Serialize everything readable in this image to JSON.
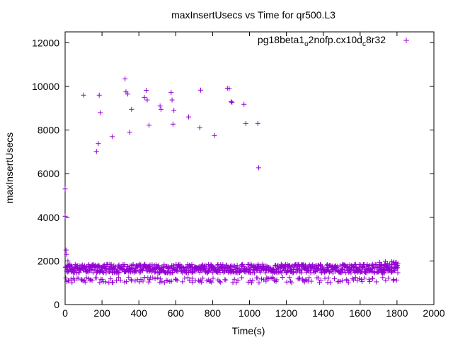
{
  "chart_data": {
    "type": "scatter",
    "title": "maxInsertUsecs vs Time for qr500.L3",
    "xlabel": "Time(s)",
    "ylabel": "maxInsertUsecs",
    "xlim": [
      0,
      2000
    ],
    "ylim": [
      0,
      12500
    ],
    "x_ticks": [
      "0",
      "200",
      "400",
      "600",
      "800",
      "1000",
      "1200",
      "1400",
      "1600",
      "1800",
      "2000"
    ],
    "y_ticks": [
      "0",
      "2000",
      "4000",
      "6000",
      "8000",
      "10000",
      "12000"
    ],
    "grid": false,
    "legend_position": "top-right",
    "series": [
      {
        "name_parts": [
          "pg18beta1",
          "o",
          "2nofp.cx10d",
          "c",
          "8r32"
        ],
        "color": "#9400d3",
        "marker": "plus",
        "points": [
          [
            0,
            5300
          ],
          [
            0,
            4050
          ],
          [
            5,
            2500
          ],
          [
            8,
            2300
          ],
          [
            15,
            2000
          ],
          [
            100,
            9600
          ],
          [
            170,
            7020
          ],
          [
            180,
            7380
          ],
          [
            185,
            9600
          ],
          [
            190,
            8800
          ],
          [
            255,
            7700
          ],
          [
            325,
            10350
          ],
          [
            330,
            9750
          ],
          [
            340,
            9650
          ],
          [
            350,
            7900
          ],
          [
            360,
            8950
          ],
          [
            430,
            9500
          ],
          [
            440,
            9820
          ],
          [
            445,
            9380
          ],
          [
            455,
            8220
          ],
          [
            515,
            9100
          ],
          [
            520,
            8950
          ],
          [
            575,
            9720
          ],
          [
            580,
            9380
          ],
          [
            585,
            8270
          ],
          [
            590,
            8900
          ],
          [
            670,
            8600
          ],
          [
            730,
            8100
          ],
          [
            735,
            9830
          ],
          [
            810,
            7750
          ],
          [
            880,
            9920
          ],
          [
            890,
            9900
          ],
          [
            900,
            9300
          ],
          [
            905,
            9270
          ],
          [
            970,
            9180
          ],
          [
            980,
            8300
          ],
          [
            1045,
            8300
          ],
          [
            1050,
            6270
          ]
        ],
        "band_summary": {
          "x_range": [
            0,
            1800
          ],
          "main_band_range": [
            1450,
            1850
          ],
          "lower_band_range": [
            1000,
            1250
          ],
          "end_band_range": [
            1550,
            2000
          ]
        }
      }
    ]
  }
}
